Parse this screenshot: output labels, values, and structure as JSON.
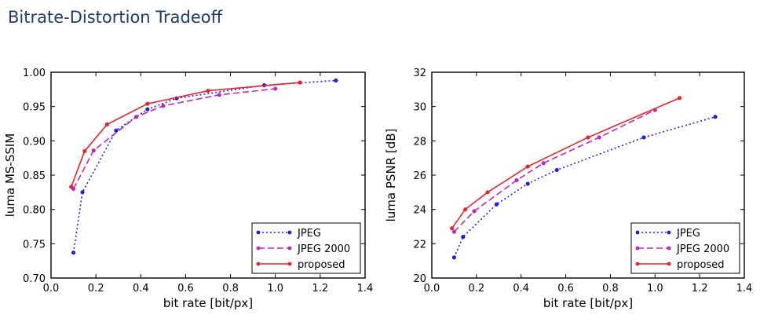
{
  "page": {
    "title": "Bitrate-Distortion Tradeoff"
  },
  "colors": {
    "jpeg": "#1f1fdc",
    "jpeg2000": "#c026c0",
    "proposed": "#e8232b"
  },
  "chart_data": [
    {
      "type": "line",
      "xlabel": "bit rate [bit/px]",
      "ylabel": "luma MS-SSIM",
      "xlim": [
        0.0,
        1.4
      ],
      "ylim": [
        0.7,
        1.0
      ],
      "xticks": [
        "0.0",
        "0.2",
        "0.4",
        "0.6",
        "0.8",
        "1.0",
        "1.2",
        "1.4"
      ],
      "yticks": [
        "0.70",
        "0.75",
        "0.80",
        "0.85",
        "0.90",
        "0.95",
        "1.00"
      ],
      "grid": false,
      "legend_position": "bottom-right",
      "series": [
        {
          "name": "JPEG",
          "style": "dotted",
          "color": "#1f1fdc",
          "x": [
            0.1,
            0.14,
            0.29,
            0.43,
            0.56,
            0.95,
            1.27
          ],
          "y": [
            0.737,
            0.825,
            0.915,
            0.946,
            0.962,
            0.981,
            0.988
          ]
        },
        {
          "name": "JPEG 2000",
          "style": "dashed",
          "color": "#c026c0",
          "x": [
            0.1,
            0.19,
            0.38,
            0.5,
            0.75,
            1.0
          ],
          "y": [
            0.83,
            0.886,
            0.935,
            0.951,
            0.967,
            0.976
          ]
        },
        {
          "name": "proposed",
          "style": "solid",
          "color": "#e8232b",
          "x": [
            0.09,
            0.15,
            0.25,
            0.43,
            0.7,
            1.11
          ],
          "y": [
            0.833,
            0.885,
            0.924,
            0.954,
            0.973,
            0.985
          ]
        }
      ]
    },
    {
      "type": "line",
      "xlabel": "bit rate [bit/px]",
      "ylabel": "luma PSNR [dB]",
      "xlim": [
        0.0,
        1.4
      ],
      "ylim": [
        20,
        32
      ],
      "xticks": [
        "0.0",
        "0.2",
        "0.4",
        "0.6",
        "0.8",
        "1.0",
        "1.2",
        "1.4"
      ],
      "yticks": [
        "20",
        "22",
        "24",
        "26",
        "28",
        "30",
        "32"
      ],
      "grid": false,
      "legend_position": "bottom-right",
      "series": [
        {
          "name": "JPEG",
          "style": "dotted",
          "color": "#1f1fdc",
          "x": [
            0.1,
            0.14,
            0.29,
            0.43,
            0.56,
            0.95,
            1.27
          ],
          "y": [
            21.2,
            22.4,
            24.3,
            25.5,
            26.3,
            28.2,
            29.4
          ]
        },
        {
          "name": "JPEG 2000",
          "style": "dashed",
          "color": "#c026c0",
          "x": [
            0.1,
            0.19,
            0.38,
            0.5,
            0.75,
            1.0
          ],
          "y": [
            22.7,
            23.9,
            25.7,
            26.7,
            28.2,
            29.8
          ]
        },
        {
          "name": "proposed",
          "style": "solid",
          "color": "#e8232b",
          "x": [
            0.09,
            0.15,
            0.25,
            0.43,
            0.7,
            1.11
          ],
          "y": [
            22.9,
            24.0,
            25.0,
            26.5,
            28.2,
            30.5
          ]
        }
      ]
    }
  ]
}
